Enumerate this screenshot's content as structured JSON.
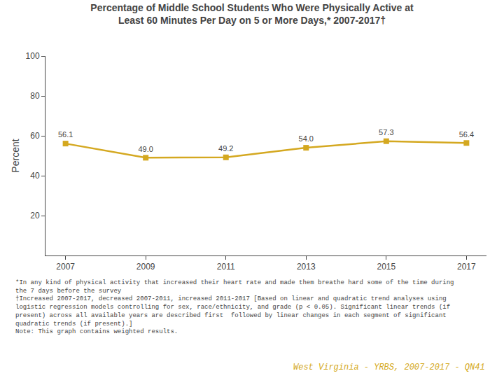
{
  "chart_data": {
    "type": "line",
    "title": "Percentage of Middle School Students Who Were Physically Active at\nLeast 60 Minutes Per Day on 5 or More Days,* 2007-2017†",
    "x": [
      2007,
      2009,
      2011,
      2013,
      2015,
      2017
    ],
    "values": [
      56.1,
      49.0,
      49.2,
      54.0,
      57.3,
      56.4
    ],
    "value_labels": [
      "56.1",
      "49.0",
      "49.2",
      "54.0",
      "57.3",
      "56.4"
    ],
    "ylabel": "Percent",
    "xlim": [
      2006.5,
      2017.5
    ],
    "xticks": [
      2007,
      2009,
      2011,
      2013,
      2015,
      2017
    ],
    "ylim": [
      0,
      100
    ],
    "yticks": [
      20,
      40,
      60,
      80,
      100
    ],
    "grid": false,
    "data_labels": true,
    "color": "#D4A820",
    "marker": "square",
    "annotations": [
      "*In any kind of physical activity that increased their heart rate and made them breathe hard some of the time during the 7 days before the survey",
      "†Increased 2007-2017, decreased 2007-2011, increased 2011-2017 [Based on linear and quadratic trend analyses using logistic regression models controlling for sex, race/ethnicity, and grade (p < 0.05). Significant linear trends (if present) across all available years are described first  followed by linear changes in each segment of significant quadratic trends (if present).]",
      "Note: This graph contains weighted results.",
      "West Virginia - YRBS, 2007-2017 - QN41"
    ]
  }
}
